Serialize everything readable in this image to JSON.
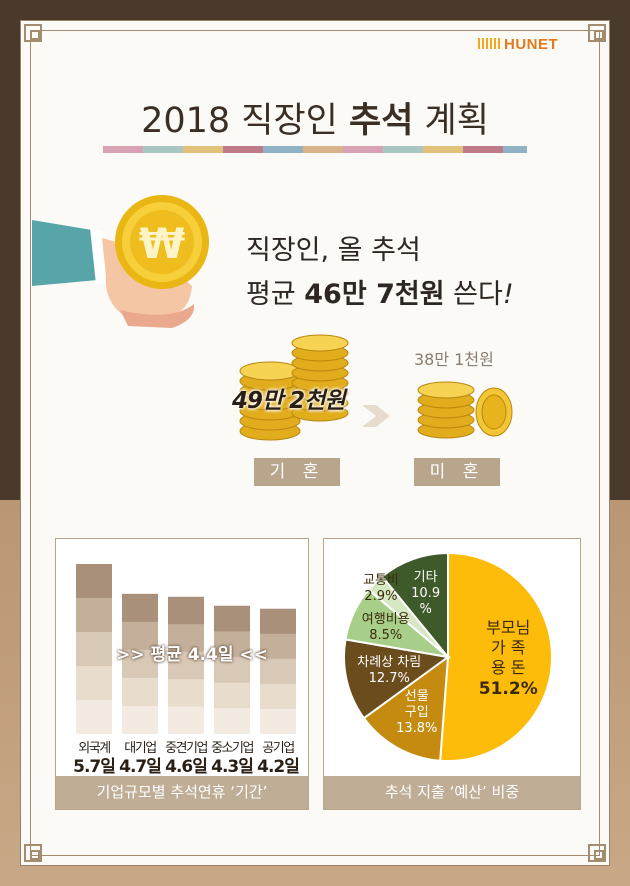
{
  "brand": {
    "logo_text": "HUNET",
    "logo_color": "#e07a1a"
  },
  "header": {
    "title_prefix": "2018 직장인 ",
    "title_bold": "추석",
    "title_suffix": " 계획"
  },
  "headline": {
    "line1": "직장인, 올 추석",
    "line2_prefix": "평균 ",
    "line2_bold": "46만 7천원",
    "line2_suffix": " 쓴다",
    "line2_end": "!"
  },
  "comparison": {
    "married_amount": "49만 2천원",
    "married_label": "기 혼",
    "single_amount": "38만 1천원",
    "single_label": "미 혼"
  },
  "colors": {
    "bar_dark": "#b39c84",
    "bar_light": "#efe5da",
    "pie_parents": "#fdbb0a",
    "pie_gift": "#c48b10",
    "pie_ritual": "#6b4c1c",
    "pie_travel": "#a8cf8a",
    "pie_transport": "#d6e7c3",
    "pie_other": "#3e5a2a"
  },
  "chart_data": [
    {
      "type": "bar",
      "title": "기업규모별 추석연휴 ‘기간’",
      "categories": [
        "외국계",
        "대기업",
        "중견기업",
        "중소기업",
        "공기업"
      ],
      "values": [
        5.7,
        4.7,
        4.6,
        4.3,
        4.2
      ],
      "value_labels": [
        "5.7일",
        "4.7일",
        "4.6일",
        "4.3일",
        "4.2일"
      ],
      "average_label": ">> 평균 4.4일 <<",
      "ylim": [
        0,
        5.7
      ]
    },
    {
      "type": "pie",
      "title": "추석 지출 ‘예산’ 비중",
      "slices": [
        {
          "label": "부모님 가족 용돈",
          "label_lines": [
            "부모님",
            "가  족",
            "용  돈"
          ],
          "value": 51.2,
          "value_label": "51.2%"
        },
        {
          "label": "선물 구입",
          "label_lines": [
            "선물",
            "구입"
          ],
          "value": 13.8,
          "value_label": "13.8%"
        },
        {
          "label": "차례상 차림",
          "label_lines": [
            "차례상 차림"
          ],
          "value": 12.7,
          "value_label": "12.7%"
        },
        {
          "label": "여행비용",
          "label_lines": [
            "여행비용"
          ],
          "value": 8.5,
          "value_label": "8.5%"
        },
        {
          "label": "교통비",
          "label_lines": [
            "교통비"
          ],
          "value": 2.9,
          "value_label": "2.9%"
        },
        {
          "label": "기타",
          "label_lines": [
            "기타"
          ],
          "value": 10.9,
          "value_label": "10.9%",
          "value_lines": [
            "10.9",
            "%"
          ]
        }
      ]
    }
  ]
}
